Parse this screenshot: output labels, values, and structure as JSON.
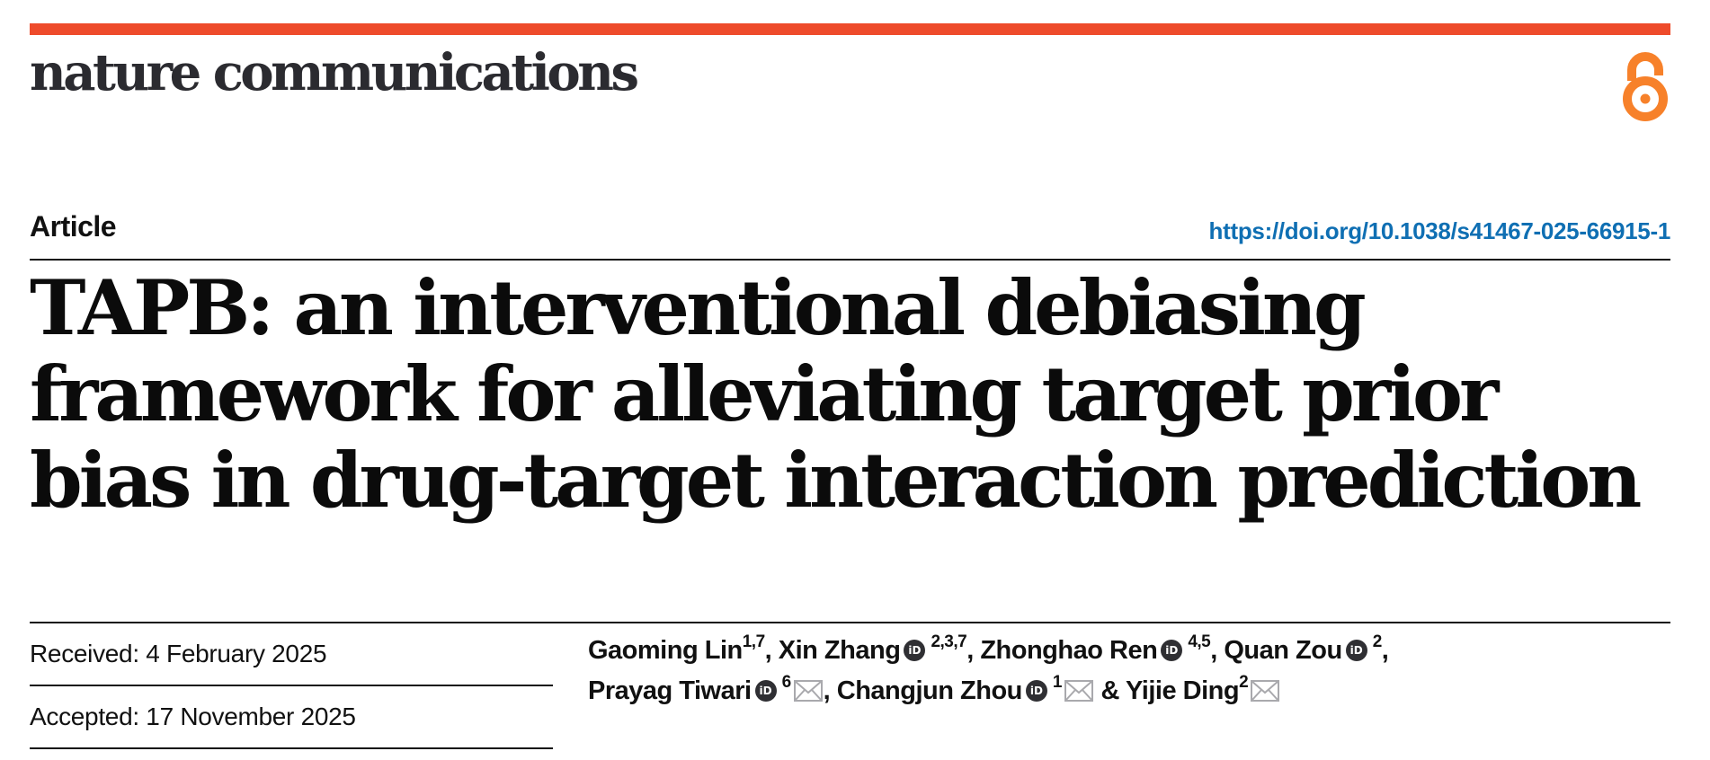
{
  "journal": {
    "name": "nature communications",
    "open_access_icon": "open-access-icon"
  },
  "article": {
    "type": "Article",
    "doi": "https://doi.org/10.1038/s41467-025-66915-1",
    "title": "TAPB: an interventional debiasing framework for alleviating target prior bias in drug-target interaction prediction"
  },
  "dates": {
    "received": "Received: 4 February 2025",
    "accepted": "Accepted: 17 November 2025"
  },
  "authors": [
    {
      "name": "Gaoming Lin",
      "affil": "1,7",
      "orcid": false,
      "email": false,
      "sep": ", "
    },
    {
      "name": "Xin Zhang",
      "affil": "2,3,7",
      "orcid": true,
      "email": false,
      "sep": ", "
    },
    {
      "name": "Zhonghao Ren",
      "affil": "4,5",
      "orcid": true,
      "email": false,
      "sep": ", "
    },
    {
      "name": "Quan Zou",
      "affil": "2",
      "orcid": true,
      "email": false,
      "sep": ", "
    },
    {
      "name": "Prayag Tiwari",
      "affil": "6",
      "orcid": true,
      "email": true,
      "sep": ", "
    },
    {
      "name": "Changjun Zhou",
      "affil": "1",
      "orcid": true,
      "email": true,
      "sep": " & "
    },
    {
      "name": "Yijie Ding",
      "affil": "2",
      "orcid": false,
      "email": true,
      "sep": ""
    }
  ],
  "colors": {
    "accent_bar": "#ee4b2b",
    "open_access": "#f7812a",
    "doi_link": "#0f6fb3"
  }
}
